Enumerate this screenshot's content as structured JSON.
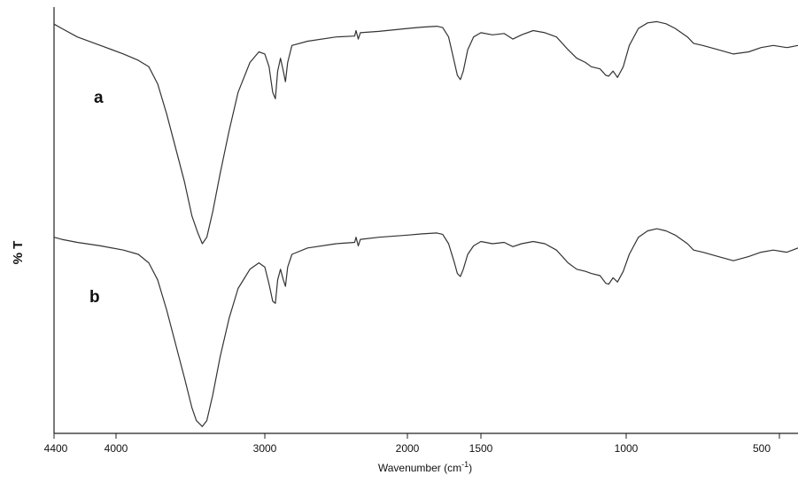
{
  "chart_data": {
    "type": "line",
    "title": "",
    "xlabel": "Wavenumber (cm",
    "xlabel_sup": "-1",
    "xlabel_close": ")",
    "ylabel": "% T",
    "x_reversed": true,
    "xlim": [
      4400,
      450
    ],
    "ylim": [
      0,
      100
    ],
    "grid": false,
    "x_ticks": [
      {
        "value": 4400,
        "label": "4400"
      },
      {
        "value": 4000,
        "label": "4000"
      },
      {
        "value": 3000,
        "label": "3000"
      },
      {
        "value": 2000,
        "label": "2000"
      },
      {
        "value": 1500,
        "label": "1500"
      },
      {
        "value": 1000,
        "label": "1000"
      },
      {
        "value": 500,
        "label": "500"
      }
    ],
    "series": [
      {
        "name": "a",
        "color": "#333333",
        "points": [
          [
            4400,
            96
          ],
          [
            4350,
            95
          ],
          [
            4250,
            93
          ],
          [
            4100,
            91
          ],
          [
            3950,
            89
          ],
          [
            3850,
            87.5
          ],
          [
            3780,
            86
          ],
          [
            3720,
            82
          ],
          [
            3660,
            75
          ],
          [
            3600,
            67
          ],
          [
            3540,
            59
          ],
          [
            3490,
            51
          ],
          [
            3450,
            47
          ],
          [
            3420,
            44.5
          ],
          [
            3390,
            46
          ],
          [
            3350,
            52
          ],
          [
            3300,
            61
          ],
          [
            3240,
            71
          ],
          [
            3180,
            80
          ],
          [
            3100,
            87
          ],
          [
            3040,
            89.5
          ],
          [
            3000,
            89
          ],
          [
            2970,
            86
          ],
          [
            2945,
            80
          ],
          [
            2926,
            78.5
          ],
          [
            2910,
            85
          ],
          [
            2890,
            88
          ],
          [
            2870,
            85
          ],
          [
            2855,
            82.5
          ],
          [
            2840,
            87
          ],
          [
            2810,
            91
          ],
          [
            2700,
            92
          ],
          [
            2500,
            93
          ],
          [
            2370,
            93.2
          ],
          [
            2360,
            94.5
          ],
          [
            2345,
            92.5
          ],
          [
            2330,
            94
          ],
          [
            2200,
            94.3
          ],
          [
            2000,
            95
          ],
          [
            1900,
            95.3
          ],
          [
            1800,
            95.5
          ],
          [
            1760,
            95.2
          ],
          [
            1720,
            93
          ],
          [
            1680,
            87
          ],
          [
            1660,
            84
          ],
          [
            1640,
            83
          ],
          [
            1620,
            85
          ],
          [
            1590,
            90
          ],
          [
            1550,
            93
          ],
          [
            1500,
            94
          ],
          [
            1460,
            93.5
          ],
          [
            1420,
            93.8
          ],
          [
            1390,
            92.5
          ],
          [
            1360,
            93.5
          ],
          [
            1320,
            94.5
          ],
          [
            1280,
            94
          ],
          [
            1240,
            93
          ],
          [
            1200,
            90
          ],
          [
            1170,
            88
          ],
          [
            1140,
            87
          ],
          [
            1120,
            86
          ],
          [
            1090,
            85.5
          ],
          [
            1070,
            84
          ],
          [
            1060,
            83.8
          ],
          [
            1045,
            85
          ],
          [
            1030,
            83.5
          ],
          [
            1010,
            86
          ],
          [
            990,
            91
          ],
          [
            960,
            95
          ],
          [
            930,
            96.3
          ],
          [
            900,
            96.6
          ],
          [
            870,
            96.1
          ],
          [
            840,
            95
          ],
          [
            800,
            93
          ],
          [
            780,
            91.5
          ],
          [
            750,
            91
          ],
          [
            700,
            90
          ],
          [
            650,
            89
          ],
          [
            600,
            89.5
          ],
          [
            560,
            90.5
          ],
          [
            520,
            91
          ],
          [
            480,
            90.5
          ],
          [
            450,
            91
          ]
        ]
      },
      {
        "name": "b",
        "color": "#333333",
        "points": [
          [
            4400,
            46
          ],
          [
            4350,
            45.5
          ],
          [
            4250,
            44.8
          ],
          [
            4100,
            44
          ],
          [
            3950,
            43
          ],
          [
            3850,
            42
          ],
          [
            3780,
            40
          ],
          [
            3720,
            36
          ],
          [
            3660,
            29
          ],
          [
            3600,
            21
          ],
          [
            3540,
            13
          ],
          [
            3490,
            6
          ],
          [
            3460,
            3
          ],
          [
            3420,
            1.6
          ],
          [
            3390,
            3
          ],
          [
            3350,
            9
          ],
          [
            3300,
            18
          ],
          [
            3240,
            27
          ],
          [
            3180,
            34
          ],
          [
            3100,
            38.5
          ],
          [
            3040,
            40
          ],
          [
            3000,
            39
          ],
          [
            2970,
            35
          ],
          [
            2945,
            31
          ],
          [
            2926,
            30.5
          ],
          [
            2910,
            36
          ],
          [
            2890,
            38.5
          ],
          [
            2870,
            36
          ],
          [
            2855,
            34.5
          ],
          [
            2840,
            39
          ],
          [
            2810,
            42
          ],
          [
            2700,
            43.5
          ],
          [
            2500,
            44.5
          ],
          [
            2370,
            44.8
          ],
          [
            2360,
            46
          ],
          [
            2345,
            44
          ],
          [
            2330,
            45.5
          ],
          [
            2200,
            46
          ],
          [
            2000,
            46.5
          ],
          [
            1900,
            46.8
          ],
          [
            1800,
            47
          ],
          [
            1760,
            46.7
          ],
          [
            1720,
            44.5
          ],
          [
            1680,
            40
          ],
          [
            1660,
            37.5
          ],
          [
            1640,
            36.8
          ],
          [
            1620,
            38.5
          ],
          [
            1590,
            42
          ],
          [
            1550,
            44
          ],
          [
            1500,
            45
          ],
          [
            1460,
            44.5
          ],
          [
            1420,
            44.8
          ],
          [
            1390,
            43.8
          ],
          [
            1360,
            44.5
          ],
          [
            1320,
            45
          ],
          [
            1280,
            44.5
          ],
          [
            1240,
            43
          ],
          [
            1200,
            40
          ],
          [
            1170,
            38.5
          ],
          [
            1140,
            38
          ],
          [
            1120,
            37.5
          ],
          [
            1090,
            37
          ],
          [
            1070,
            35.2
          ],
          [
            1060,
            35
          ],
          [
            1045,
            36.5
          ],
          [
            1030,
            35.5
          ],
          [
            1010,
            38
          ],
          [
            990,
            42
          ],
          [
            960,
            46
          ],
          [
            930,
            47.5
          ],
          [
            900,
            48
          ],
          [
            870,
            47.5
          ],
          [
            840,
            46.5
          ],
          [
            800,
            44.5
          ],
          [
            780,
            43
          ],
          [
            750,
            42.5
          ],
          [
            700,
            41.5
          ],
          [
            650,
            40.5
          ],
          [
            600,
            41.5
          ],
          [
            560,
            42.5
          ],
          [
            520,
            43
          ],
          [
            480,
            42.5
          ],
          [
            450,
            43.5
          ]
        ]
      }
    ]
  }
}
